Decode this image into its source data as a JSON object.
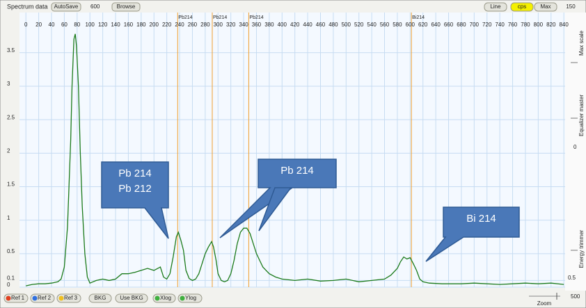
{
  "toolbar": {
    "title": "Spectrum data",
    "autosave": "AutoSave",
    "value": "600",
    "browse": "Browse",
    "buttons": [
      {
        "label": "Line",
        "active": false
      },
      {
        "label": "cps",
        "active": true
      },
      {
        "label": "Max",
        "active": false
      }
    ]
  },
  "side": {
    "top_value": "150",
    "max_scale": "Max scale",
    "equalizer": "Equalizer master",
    "eq_value": "0",
    "trimmer": "Energy trimmer",
    "trim_value": "0.5",
    "zoom_value": "500",
    "zoom": "Zoom"
  },
  "bottom_buttons": [
    {
      "label": "Ref 1",
      "dot": "#e04020"
    },
    {
      "label": "Ref 2",
      "dot": "#3070e0"
    },
    {
      "label": "Ref 3",
      "dot": "#f0c020"
    },
    {
      "label": "BKG",
      "dot": null
    },
    {
      "label": "Use BKG",
      "dot": null
    },
    {
      "label": "Xlog",
      "dot": "#40b040"
    },
    {
      "label": "Ylog",
      "dot": "#40b040"
    }
  ],
  "chart_data": {
    "type": "line",
    "color": "#1a7a1a",
    "grid": true,
    "xlim": [
      -10,
      842
    ],
    "ylim": [
      0,
      4.1
    ],
    "xticks": [
      0,
      20,
      40,
      60,
      80,
      100,
      120,
      140,
      160,
      180,
      200,
      220,
      240,
      260,
      280,
      300,
      320,
      340,
      360,
      380,
      400,
      420,
      440,
      460,
      480,
      500,
      520,
      540,
      560,
      580,
      600,
      620,
      640,
      660,
      680,
      700,
      720,
      740,
      760,
      780,
      800,
      820,
      840
    ],
    "yticks": [
      0,
      0.1,
      0.5,
      1,
      1.5,
      2,
      2.5,
      3,
      3.5
    ],
    "x": [
      0,
      10,
      20,
      30,
      40,
      50,
      55,
      60,
      65,
      70,
      72,
      75,
      77,
      79,
      82,
      85,
      88,
      92,
      96,
      100,
      110,
      120,
      130,
      140,
      150,
      160,
      170,
      180,
      190,
      200,
      210,
      215,
      220,
      225,
      230,
      235,
      238,
      242,
      246,
      250,
      255,
      260,
      265,
      270,
      275,
      280,
      285,
      290,
      293,
      297,
      300,
      305,
      310,
      315,
      320,
      325,
      330,
      335,
      340,
      345,
      350,
      355,
      360,
      365,
      370,
      380,
      390,
      400,
      420,
      440,
      460,
      480,
      500,
      520,
      540,
      560,
      570,
      580,
      585,
      590,
      595,
      600,
      605,
      610,
      615,
      620,
      630,
      650,
      680,
      700,
      720,
      740,
      760,
      780,
      800,
      820,
      840
    ],
    "values": [
      0.02,
      0.04,
      0.05,
      0.05,
      0.06,
      0.08,
      0.12,
      0.3,
      0.9,
      2.2,
      3.0,
      3.7,
      3.78,
      3.6,
      3.0,
      2.0,
      1.2,
      0.5,
      0.15,
      0.06,
      0.1,
      0.12,
      0.1,
      0.12,
      0.2,
      0.2,
      0.22,
      0.25,
      0.28,
      0.25,
      0.3,
      0.15,
      0.12,
      0.2,
      0.45,
      0.75,
      0.82,
      0.7,
      0.55,
      0.25,
      0.13,
      0.1,
      0.12,
      0.2,
      0.35,
      0.5,
      0.6,
      0.68,
      0.6,
      0.4,
      0.2,
      0.1,
      0.08,
      0.1,
      0.2,
      0.4,
      0.65,
      0.82,
      0.88,
      0.88,
      0.8,
      0.65,
      0.5,
      0.4,
      0.3,
      0.2,
      0.15,
      0.12,
      0.1,
      0.12,
      0.09,
      0.1,
      0.12,
      0.08,
      0.1,
      0.12,
      0.18,
      0.28,
      0.38,
      0.45,
      0.42,
      0.44,
      0.35,
      0.25,
      0.12,
      0.08,
      0.06,
      0.05,
      0.05,
      0.06,
      0.05,
      0.04,
      0.05,
      0.06,
      0.05,
      0.06,
      0.04
    ],
    "markers": [
      {
        "label": "Pb214",
        "x": 237
      },
      {
        "label": "Pb214",
        "x": 291
      },
      {
        "label": "Pb214",
        "x": 348
      },
      {
        "label": "Bi214",
        "x": 602
      }
    ],
    "marker_color": "#f0a030",
    "annotations": [
      {
        "text": [
          "Pb 214",
          "Pb 212"
        ]
      },
      {
        "text": [
          "Pb 214"
        ]
      },
      {
        "text": [
          "Bi 214"
        ]
      }
    ]
  }
}
